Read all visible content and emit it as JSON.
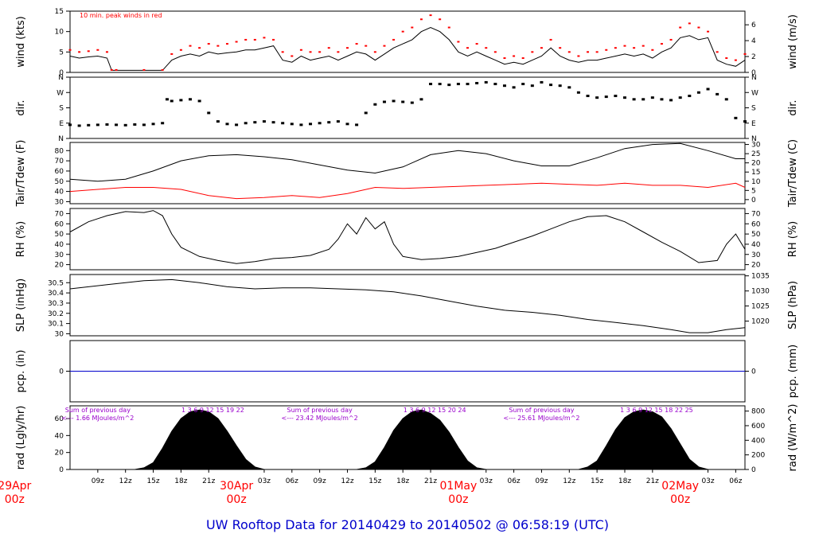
{
  "title": "UW Rooftop Data for 20140429  to  20140502 @ 06:58:19  (UTC)",
  "colors": {
    "black": "#000000",
    "red": "#ff0000",
    "blue": "#0000cc",
    "purple": "#9900cc",
    "title": "#0000cc"
  },
  "time_axis": {
    "start_hour": 6,
    "end_hour": 79,
    "ticks": [
      {
        "hour": 9,
        "label": "09z"
      },
      {
        "hour": 12,
        "label": "12z"
      },
      {
        "hour": 15,
        "label": "15z"
      },
      {
        "hour": 18,
        "label": "18z"
      },
      {
        "hour": 21,
        "label": "21z"
      },
      {
        "hour": 27,
        "label": "03z"
      },
      {
        "hour": 30,
        "label": "06z"
      },
      {
        "hour": 33,
        "label": "09z"
      },
      {
        "hour": 36,
        "label": "12z"
      },
      {
        "hour": 39,
        "label": "15z"
      },
      {
        "hour": 42,
        "label": "18z"
      },
      {
        "hour": 45,
        "label": "21z"
      },
      {
        "hour": 51,
        "label": "03z"
      },
      {
        "hour": 54,
        "label": "06z"
      },
      {
        "hour": 57,
        "label": "09z"
      },
      {
        "hour": 60,
        "label": "12z"
      },
      {
        "hour": 63,
        "label": "15z"
      },
      {
        "hour": 66,
        "label": "18z"
      },
      {
        "hour": 69,
        "label": "21z"
      },
      {
        "hour": 75,
        "label": "03z"
      },
      {
        "hour": 78,
        "label": "06z"
      }
    ],
    "day_labels": [
      {
        "hour": 0,
        "date": "29Apr",
        "time": "00z"
      },
      {
        "hour": 24,
        "date": "30Apr",
        "time": "00z"
      },
      {
        "hour": 48,
        "date": "01May",
        "time": "00z"
      },
      {
        "hour": 72,
        "date": "02May",
        "time": "00z"
      }
    ]
  },
  "chart_data": [
    {
      "type": "line",
      "id": "wind",
      "ylabel_left": "wind (kts)",
      "ylabel_right": "wind (m/s)",
      "ylim": [
        0,
        15
      ],
      "left_ticks": [
        0,
        5,
        10,
        15
      ],
      "right_ticks": [
        {
          "v": 0,
          "label": "0"
        },
        {
          "v": 3.89,
          "label": "2"
        },
        {
          "v": 7.78,
          "label": "4"
        },
        {
          "v": 11.66,
          "label": "6"
        }
      ],
      "annotation": "10 min. peak winds in red",
      "x": [
        6,
        7,
        8,
        9,
        10,
        10.5,
        11,
        14,
        16,
        17,
        18,
        19,
        20,
        21,
        22,
        23,
        24,
        25,
        26,
        27,
        28,
        29,
        30,
        31,
        32,
        33,
        34,
        35,
        36,
        37,
        38,
        39,
        40,
        41,
        42,
        43,
        44,
        45,
        46,
        47,
        48,
        49,
        50,
        51,
        52,
        53,
        54,
        55,
        56,
        57,
        58,
        59,
        60,
        61,
        62,
        63,
        64,
        65,
        66,
        67,
        68,
        69,
        70,
        71,
        72,
        73,
        74,
        75,
        76,
        77,
        78,
        79
      ],
      "series": [
        {
          "name": "wind",
          "y": [
            4,
            3.5,
            3.8,
            4,
            3.5,
            0.5,
            0.5,
            0.5,
            0.5,
            3,
            4,
            4.5,
            4,
            5,
            4.5,
            4.8,
            5,
            5.5,
            5.5,
            6,
            6.5,
            3,
            2.5,
            4,
            3,
            3.5,
            4,
            3,
            4,
            5,
            4.5,
            3,
            4.5,
            6,
            7,
            8,
            10,
            11,
            10,
            8,
            5,
            4,
            5,
            4,
            3,
            2,
            2.5,
            2,
            3,
            4,
            6,
            4,
            3,
            2.5,
            3,
            3,
            3.5,
            4,
            4.5,
            4,
            4.5,
            3.5,
            5,
            6,
            8.5,
            9,
            8,
            8.5,
            3,
            2,
            1.5,
            3
          ]
        },
        {
          "name": "peak",
          "y": [
            5.5,
            5,
            5.2,
            5.5,
            5,
            0.6,
            0.6,
            0.6,
            0.6,
            4.5,
            5.5,
            6.5,
            6,
            7,
            6.5,
            7,
            7.5,
            8,
            8,
            8.5,
            8,
            5,
            4,
            5.5,
            5,
            5,
            6,
            5,
            6,
            7,
            6.5,
            5,
            6.5,
            8,
            10,
            11,
            13,
            14,
            13,
            11,
            7.5,
            6,
            7,
            6,
            5,
            3.5,
            4,
            3.5,
            5,
            6,
            8,
            6,
            5,
            4,
            5,
            5,
            5.5,
            6,
            6.5,
            6,
            6.5,
            5.5,
            7,
            8,
            11,
            12,
            11,
            10,
            5,
            3.5,
            3,
            4.5
          ]
        }
      ]
    },
    {
      "type": "scatter",
      "id": "dir",
      "ylabel_left": "dir.",
      "ylabel_right": "dir.",
      "ylim": [
        0,
        360
      ],
      "ticks": [
        {
          "v": 0,
          "label": "N"
        },
        {
          "v": 90,
          "label": "E"
        },
        {
          "v": 180,
          "label": "S"
        },
        {
          "v": 270,
          "label": "W"
        },
        {
          "v": 360,
          "label": "N"
        }
      ],
      "x": [
        6,
        7,
        8,
        9,
        10,
        11,
        12,
        13,
        14,
        15,
        16,
        16.5,
        17,
        18,
        19,
        20,
        21,
        22,
        23,
        24,
        25,
        26,
        27,
        28,
        29,
        30,
        31,
        32,
        33,
        34,
        35,
        36,
        37,
        38,
        39,
        40,
        41,
        42,
        43,
        44,
        45,
        46,
        47,
        48,
        49,
        50,
        51,
        52,
        53,
        54,
        55,
        56,
        57,
        58,
        59,
        60,
        61,
        62,
        63,
        64,
        65,
        66,
        67,
        68,
        69,
        70,
        71,
        72,
        73,
        74,
        75,
        76,
        77,
        78,
        79
      ],
      "y": [
        80,
        75,
        78,
        80,
        82,
        80,
        78,
        82,
        80,
        85,
        90,
        230,
        220,
        225,
        230,
        220,
        150,
        100,
        85,
        80,
        90,
        95,
        100,
        95,
        90,
        85,
        80,
        85,
        90,
        95,
        100,
        85,
        80,
        150,
        200,
        215,
        220,
        215,
        210,
        230,
        320,
        320,
        315,
        320,
        320,
        325,
        330,
        320,
        310,
        300,
        320,
        310,
        330,
        315,
        310,
        300,
        270,
        250,
        240,
        245,
        250,
        240,
        230,
        230,
        240,
        230,
        225,
        240,
        250,
        270,
        290,
        260,
        230,
        120,
        100
      ]
    },
    {
      "type": "line",
      "id": "temp",
      "ylabel_left": "Tair/Tdew (F)",
      "ylabel_right": "Tair/Tdew (C)",
      "ylim": [
        28,
        88
      ],
      "left_ticks": [
        30,
        40,
        50,
        60,
        70,
        80
      ],
      "right_ticks": [
        {
          "v": 32,
          "label": "0"
        },
        {
          "v": 41,
          "label": "5"
        },
        {
          "v": 50,
          "label": "10"
        },
        {
          "v": 59,
          "label": "15"
        },
        {
          "v": 68,
          "label": "20"
        },
        {
          "v": 77,
          "label": "25"
        },
        {
          "v": 86,
          "label": "30"
        }
      ],
      "x": [
        6,
        9,
        12,
        15,
        18,
        21,
        24,
        27,
        30,
        33,
        36,
        39,
        42,
        45,
        48,
        51,
        54,
        57,
        60,
        63,
        66,
        69,
        72,
        75,
        78,
        79
      ],
      "series": [
        {
          "name": "Tair",
          "y": [
            52,
            50,
            52,
            60,
            70,
            75,
            76,
            74,
            71,
            66,
            61,
            58,
            64,
            76,
            80,
            77,
            70,
            65,
            65,
            73,
            82,
            86,
            87,
            80,
            72,
            72
          ]
        },
        {
          "name": "Tdew",
          "y": [
            40,
            42,
            44,
            44,
            42,
            36,
            33,
            34,
            36,
            34,
            38,
            44,
            43,
            44,
            45,
            46,
            47,
            48,
            47,
            46,
            48,
            46,
            46,
            44,
            48,
            44
          ]
        }
      ]
    },
    {
      "type": "line",
      "id": "rh",
      "ylabel_left": "RH (%)",
      "ylabel_right": "RH (%)",
      "ylim": [
        15,
        75
      ],
      "left_ticks": [
        20,
        30,
        40,
        50,
        60,
        70
      ],
      "right_ticks": [
        {
          "v": 20,
          "label": "20"
        },
        {
          "v": 30,
          "label": "30"
        },
        {
          "v": 40,
          "label": "40"
        },
        {
          "v": 50,
          "label": "50"
        },
        {
          "v": 60,
          "label": "60"
        },
        {
          "v": 70,
          "label": "70"
        }
      ],
      "x": [
        6,
        8,
        10,
        12,
        14,
        15,
        16,
        17,
        18,
        20,
        22,
        24,
        26,
        28,
        30,
        32,
        34,
        35,
        36,
        37,
        38,
        39,
        40,
        41,
        42,
        44,
        46,
        48,
        50,
        52,
        54,
        56,
        58,
        60,
        62,
        64,
        66,
        68,
        70,
        72,
        74,
        76,
        77,
        78,
        79
      ],
      "series": [
        {
          "name": "RH",
          "y": [
            52,
            62,
            68,
            72,
            71,
            73,
            68,
            50,
            37,
            28,
            24,
            21,
            23,
            26,
            27,
            29,
            35,
            45,
            60,
            50,
            66,
            55,
            62,
            40,
            28,
            25,
            26,
            28,
            32,
            36,
            42,
            48,
            55,
            62,
            67,
            68,
            62,
            52,
            42,
            33,
            22,
            24,
            40,
            50,
            35
          ]
        }
      ]
    },
    {
      "type": "line",
      "id": "slp",
      "ylabel_left": "SLP (inHg)",
      "ylabel_right": "SLP (hPa)",
      "ylim": [
        29.98,
        30.58
      ],
      "left_ticks": [
        30.0,
        30.1,
        30.2,
        30.3,
        30.4,
        30.5
      ],
      "right_ticks": [
        {
          "v": 30.124,
          "label": "1020"
        },
        {
          "v": 30.272,
          "label": "1025"
        },
        {
          "v": 30.419,
          "label": "1030"
        },
        {
          "v": 30.567,
          "label": "1035"
        }
      ],
      "x": [
        6,
        10,
        14,
        17,
        20,
        23,
        26,
        29,
        32,
        35,
        38,
        41,
        44,
        47,
        50,
        53,
        56,
        59,
        62,
        65,
        68,
        71,
        73,
        75,
        77,
        79
      ],
      "series": [
        {
          "name": "SLP",
          "y": [
            30.44,
            30.48,
            30.52,
            30.53,
            30.5,
            30.46,
            30.44,
            30.45,
            30.45,
            30.44,
            30.43,
            30.41,
            30.37,
            30.32,
            30.27,
            30.23,
            30.21,
            30.18,
            30.14,
            30.11,
            30.08,
            30.04,
            30.01,
            30.01,
            30.04,
            30.06
          ]
        }
      ]
    },
    {
      "type": "line",
      "id": "pcp",
      "ylabel_left": "pcp. (in)",
      "ylabel_right": "pcp. (mm)",
      "ylim": [
        -1,
        1
      ],
      "left_ticks": [
        0
      ],
      "right_ticks": [
        {
          "v": 0,
          "label": "0"
        }
      ],
      "x": [
        6,
        79
      ],
      "series": [
        {
          "name": "pcp",
          "y": [
            0,
            0
          ]
        }
      ]
    },
    {
      "type": "area",
      "id": "rad",
      "ylabel_left": "rad (Lgly/hr)",
      "ylabel_right": "rad (W/m^2)",
      "ylim": [
        0,
        75
      ],
      "left_ticks": [
        0,
        20,
        40,
        60
      ],
      "right_ticks": [
        {
          "v": 0,
          "label": "0"
        },
        {
          "v": 17.2,
          "label": "200"
        },
        {
          "v": 34.4,
          "label": "400"
        },
        {
          "v": 51.6,
          "label": "600"
        },
        {
          "v": 68.8,
          "label": "800"
        }
      ],
      "x": [
        6,
        10,
        13,
        14,
        15,
        16,
        17,
        18,
        19,
        20,
        21,
        22,
        23,
        24,
        25,
        26,
        27,
        37,
        38,
        39,
        40,
        41,
        42,
        43,
        44,
        45,
        46,
        47,
        48,
        49,
        50,
        51,
        61,
        62,
        63,
        64,
        65,
        66,
        67,
        68,
        69,
        70,
        71,
        72,
        73,
        74,
        75,
        79
      ],
      "series": [
        {
          "name": "rad",
          "y": [
            0,
            0,
            0,
            2,
            8,
            25,
            45,
            60,
            68,
            70,
            68,
            60,
            45,
            28,
            12,
            3,
            0,
            0,
            2,
            9,
            26,
            46,
            60,
            68,
            70,
            66,
            58,
            44,
            26,
            10,
            2,
            0,
            0,
            3,
            10,
            28,
            47,
            61,
            68,
            70,
            68,
            62,
            48,
            30,
            12,
            3,
            0,
            0
          ]
        }
      ],
      "annotations": [
        {
          "hour": 9,
          "line1": "Sum of previous day",
          "line2": "<--- 1.66 MJoules/m^2",
          "hours": "1  3   6   9  12  15  19  22"
        },
        {
          "hour": 33,
          "line1": "Sum of previous day",
          "line2": "<--- 23.42 MJoules/m^2",
          "hours": "1  3   6   9  12  15  20  24"
        },
        {
          "hour": 57,
          "line1": "Sum of previous day",
          "line2": "<--- 25.61 MJoules/m^2",
          "hours": "1  3   6   9  12  15  18  22  25"
        }
      ]
    }
  ]
}
